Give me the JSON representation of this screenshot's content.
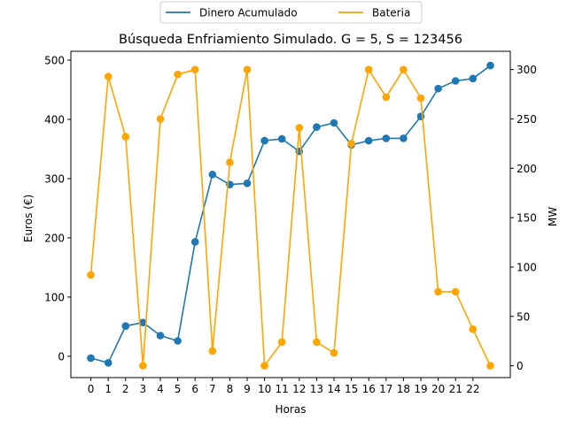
{
  "chart_data": {
    "type": "line",
    "title": "Búsqueda Enfriamiento Simulado. G = 5, S = 123456",
    "xlabel": "Horas",
    "ylabel_left": "Euros (€)",
    "ylabel_right": "MW",
    "x": [
      0,
      1,
      2,
      3,
      4,
      5,
      6,
      7,
      8,
      9,
      10,
      11,
      12,
      13,
      14,
      15,
      16,
      17,
      18,
      19,
      20,
      21,
      22,
      23
    ],
    "x_tick_labels": [
      "0",
      "1",
      "2",
      "3",
      "4",
      "5",
      "6",
      "7",
      "8",
      "9",
      "10",
      "11",
      "12",
      "13",
      "14",
      "15",
      "16",
      "17",
      "18",
      "19",
      "20",
      "21",
      "22"
    ],
    "xlim": [
      -1.15,
      24.15
    ],
    "ylim_left": [
      -36,
      515
    ],
    "ylim_right": [
      -12,
      318.5
    ],
    "y_ticks_left": [
      0,
      100,
      200,
      300,
      400,
      500
    ],
    "y_ticks_right": [
      0,
      50,
      100,
      150,
      200,
      250,
      300
    ],
    "grid": false,
    "legend_position": "top-center",
    "series": [
      {
        "name": "Dinero Acumulado",
        "axis": "left",
        "color": "#1f77b4",
        "values": [
          -3,
          -11,
          51,
          57,
          35,
          26,
          193,
          307,
          290,
          292,
          364,
          367,
          346,
          387,
          394,
          357,
          364,
          368,
          368,
          405,
          452,
          465,
          469,
          491
        ]
      },
      {
        "name": "Bateria",
        "axis": "right",
        "color": "#ffa500",
        "values": [
          92,
          293,
          232,
          0,
          250,
          295,
          300,
          15,
          206,
          300,
          0,
          24,
          241,
          24,
          13,
          225,
          300,
          272,
          300,
          271,
          75,
          75,
          37,
          0
        ]
      }
    ]
  }
}
